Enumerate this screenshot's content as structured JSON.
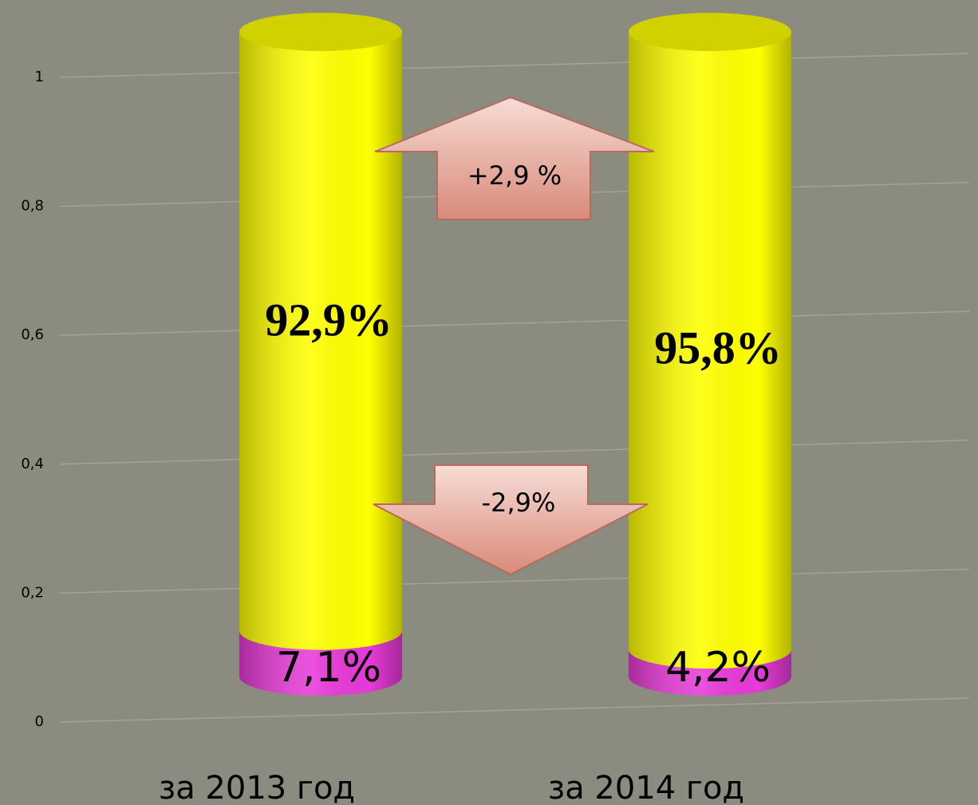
{
  "chart_data": {
    "type": "stacked-cylinder",
    "categories": [
      "за 2013 год",
      "за 2014 год"
    ],
    "series": [
      {
        "color": "#e83ad8",
        "values": [
          0.071,
          0.042
        ],
        "value_labels": [
          "7,1%",
          "4,2%"
        ]
      },
      {
        "color": "#ffff00",
        "values": [
          0.929,
          0.958
        ],
        "value_labels": [
          "92,9%",
          "95,8%"
        ]
      }
    ],
    "ylim": [
      0,
      1
    ],
    "yticks": [
      0,
      {
        "value": 0.2,
        "label": "0,2"
      },
      {
        "value": 0.4,
        "label": "0,4"
      },
      {
        "value": 0.6,
        "label": "0,6"
      },
      {
        "value": 0.8,
        "label": "0,8"
      },
      1
    ],
    "grid": true,
    "annotations": [
      "+2,9 %",
      "-2,9%"
    ]
  }
}
